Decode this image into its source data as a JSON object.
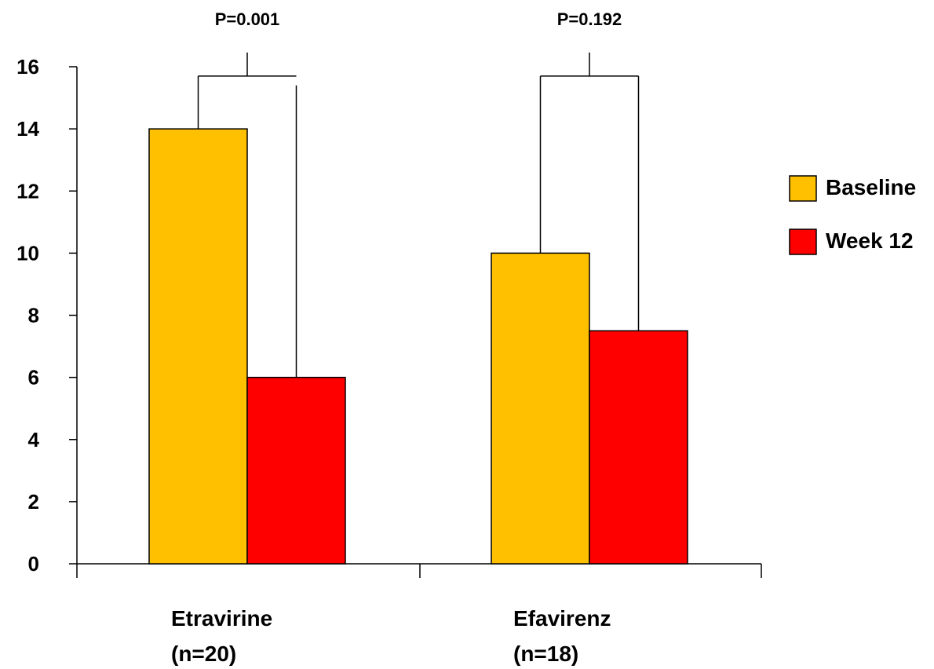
{
  "chart_data": {
    "type": "bar",
    "title": "",
    "xlabel": "",
    "ylabel": "",
    "ylim": [
      0,
      16
    ],
    "y_ticks": [
      0,
      2,
      4,
      6,
      8,
      10,
      12,
      14,
      16
    ],
    "grid": false,
    "legend_position": "right",
    "categories": [
      {
        "line1": "Etravirine",
        "line2": "(n=20)"
      },
      {
        "line1": "Efavirenz",
        "line2": "(n=18)"
      }
    ],
    "series": [
      {
        "name": "Baseline",
        "color": "#FFC000",
        "values": [
          14,
          10
        ]
      },
      {
        "name": "Week 12",
        "color": "#FF0000",
        "values": [
          6,
          7.5
        ]
      }
    ],
    "annotations": [
      {
        "category": 0,
        "text": "P=0.001",
        "bracket_y": 15.7
      },
      {
        "category": 1,
        "text": "P=0.192",
        "bracket_y": 15.7
      }
    ]
  }
}
